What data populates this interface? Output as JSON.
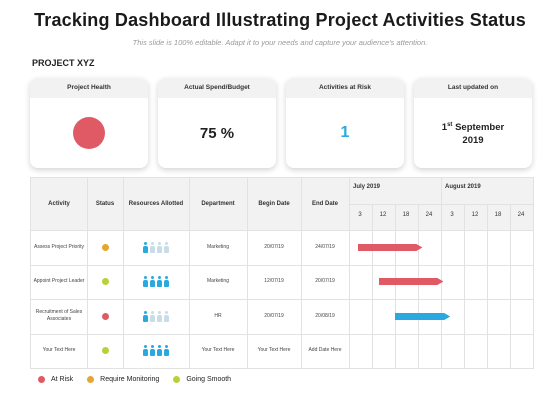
{
  "page": {
    "title": "Tracking Dashboard Illustrating Project Activities Status",
    "subtitle": "This slide is 100% editable. Adapt it to your needs and capture your audience's attention.",
    "project": "PROJECT XYZ"
  },
  "cards": {
    "health": {
      "label": "Project Health",
      "status_color": "#e05a66"
    },
    "spend": {
      "label": "Actual Spend/Budget",
      "value": "75 %"
    },
    "risk": {
      "label": "Activities at Risk",
      "value": "1"
    },
    "updated": {
      "label": "Last updated on",
      "day": "1",
      "ordinal": "st",
      "month": "September",
      "year": "2019"
    }
  },
  "table": {
    "headers": {
      "activity": "Activity",
      "status": "Status",
      "resources": "Resources Allotted",
      "department": "Department",
      "begin": "Begin Date",
      "end": "End Date"
    },
    "months": [
      "July 2019",
      "August 2019"
    ],
    "weeks": [
      "3",
      "12",
      "18",
      "24",
      "3",
      "12",
      "18",
      "24"
    ],
    "rows": [
      {
        "activity": "Assess Project Priority",
        "status": "monitoring",
        "resources_active": 1,
        "resources_total": 4,
        "department": "Marketing",
        "begin": "20/07/19",
        "end": "24/07/19",
        "bar_color": "#e05a66",
        "bar_start_week": 0.4,
        "bar_end_week": 3.2
      },
      {
        "activity": "Appoint Project Leader",
        "status": "smooth",
        "resources_active": 4,
        "resources_total": 4,
        "department": "Marketing",
        "begin": "12/07/19",
        "end": "20/07/19",
        "bar_color": "#e05a66",
        "bar_start_week": 1.3,
        "bar_end_week": 4.1
      },
      {
        "activity": "Recruitment of Sales Associates",
        "status": "risk",
        "resources_active": 1,
        "resources_total": 4,
        "department": "HR",
        "begin": "20/07/19",
        "end": "20/08/19",
        "bar_color": "#29a9e0",
        "bar_start_week": 2.0,
        "bar_end_week": 4.4
      },
      {
        "activity": "Your Text Here",
        "status": "smooth",
        "resources_active": 4,
        "resources_total": 4,
        "department": "Your Text Here",
        "begin": "Your Text Here",
        "end": "Add Date Here",
        "bar_color": null
      }
    ]
  },
  "legend": [
    {
      "key": "risk",
      "label": "At Risk",
      "color": "#e05a66"
    },
    {
      "key": "monitoring",
      "label": "Require Monitoring",
      "color": "#e3a72f"
    },
    {
      "key": "smooth",
      "label": "Going Smooth",
      "color": "#b5d334"
    }
  ],
  "colors": {
    "person_active": "#29a9e0",
    "person_inactive": "#c7dde8"
  }
}
